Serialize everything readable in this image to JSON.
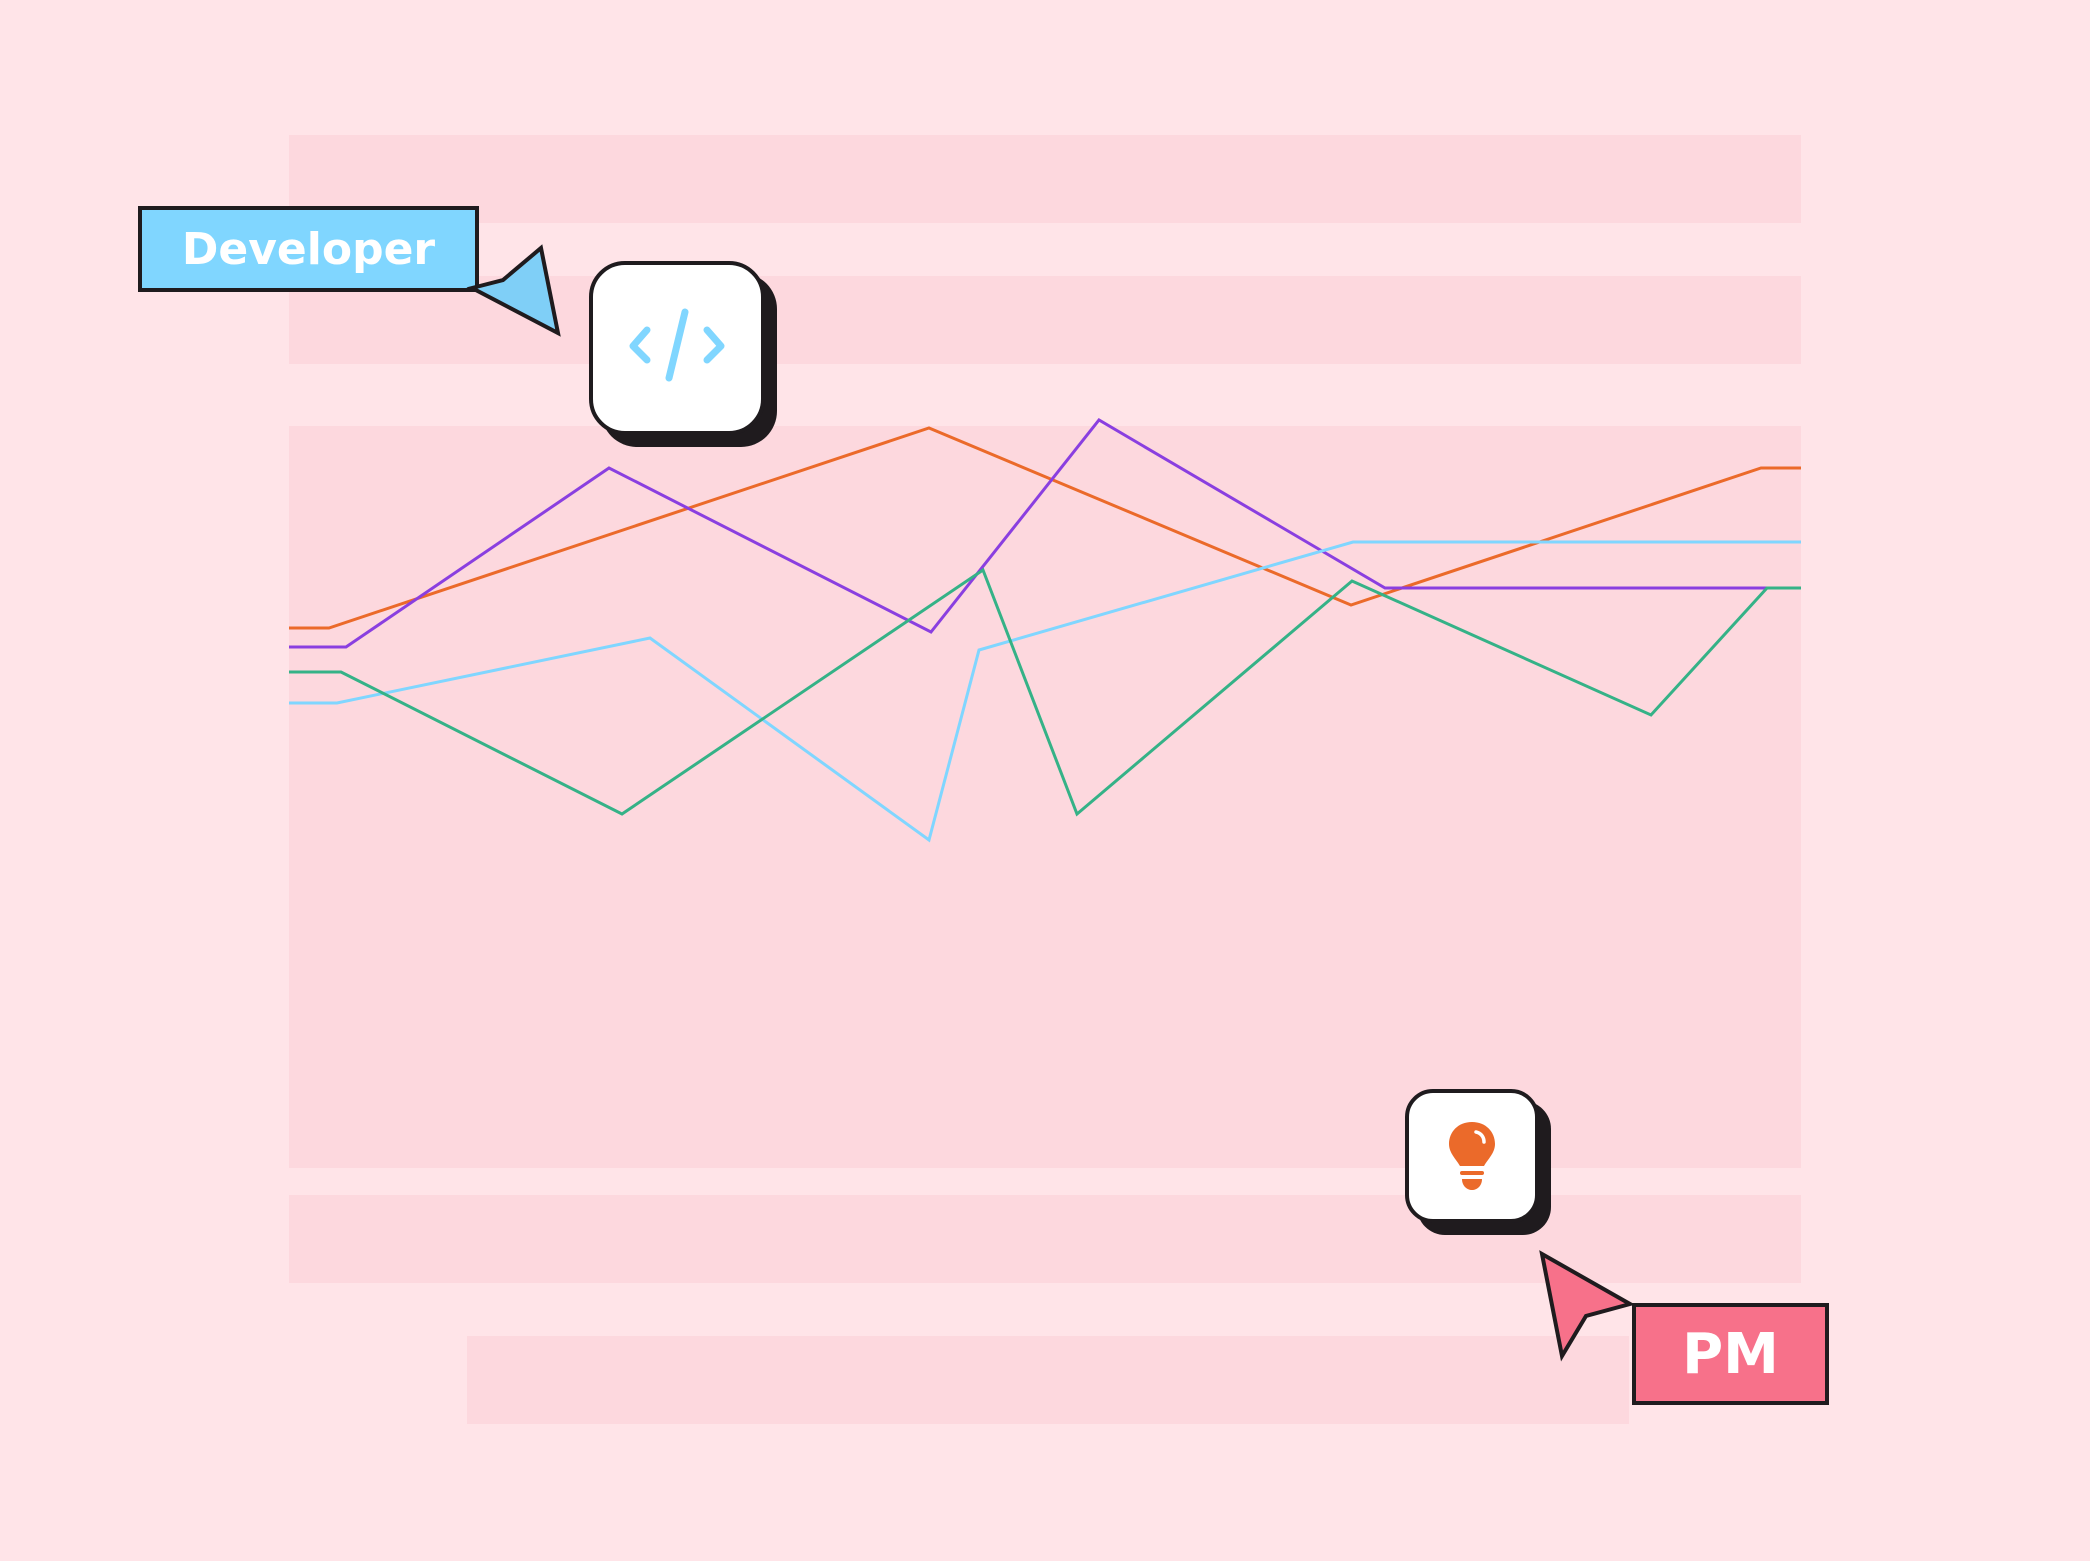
{
  "labels": {
    "developer": "Developer",
    "pm": "PM"
  },
  "colors": {
    "background": "#ffe4e8",
    "block": "#fdd8de",
    "developer_tag": "#80d6ff",
    "pm_tag": "#f7718a",
    "outline": "#1f1b1e",
    "bulb": "#eb6a2a",
    "code_icon": "#80d6ff"
  },
  "icons": {
    "code": "code-icon",
    "bulb": "lightbulb-icon",
    "developer_cursor": "cursor-arrow-icon",
    "pm_cursor": "cursor-arrow-icon"
  },
  "chart_data": {
    "type": "line",
    "ylim": [
      0,
      742
    ],
    "x": [
      0,
      40,
      240,
      280,
      320,
      360,
      400,
      440,
      480,
      520,
      600,
      640,
      680,
      720,
      760,
      800,
      840,
      880,
      920,
      960,
      1000,
      1040,
      1060,
      1120,
      1200,
      1240,
      1280,
      1320,
      1400,
      1460,
      1512
    ],
    "series": [
      {
        "color": "#eb6a2a",
        "points": [
          [
            0,
            540
          ],
          [
            40,
            540
          ],
          [
            640,
            740
          ],
          [
            1062,
            563
          ],
          [
            1472,
            700
          ],
          [
            1512,
            700
          ]
        ]
      },
      {
        "color": "#8a3fe0",
        "points": [
          [
            0,
            521
          ],
          [
            57,
            521
          ],
          [
            320,
            700
          ],
          [
            642,
            536
          ],
          [
            810,
            748
          ],
          [
            1096,
            580
          ],
          [
            1512,
            580
          ]
        ]
      },
      {
        "color": "#80d6ff",
        "points": [
          [
            0,
            465
          ],
          [
            48,
            465
          ],
          [
            361,
            530
          ],
          [
            640,
            328
          ],
          [
            690,
            518
          ],
          [
            1064,
            626
          ],
          [
            1512,
            626
          ]
        ]
      },
      {
        "color": "#35b287",
        "points": [
          [
            0,
            496
          ],
          [
            52,
            496
          ],
          [
            333,
            354
          ],
          [
            694,
            598
          ],
          [
            788,
            354
          ],
          [
            1063,
            587
          ],
          [
            1362,
            453
          ],
          [
            1478,
            580
          ],
          [
            1512,
            580
          ]
        ]
      }
    ]
  }
}
